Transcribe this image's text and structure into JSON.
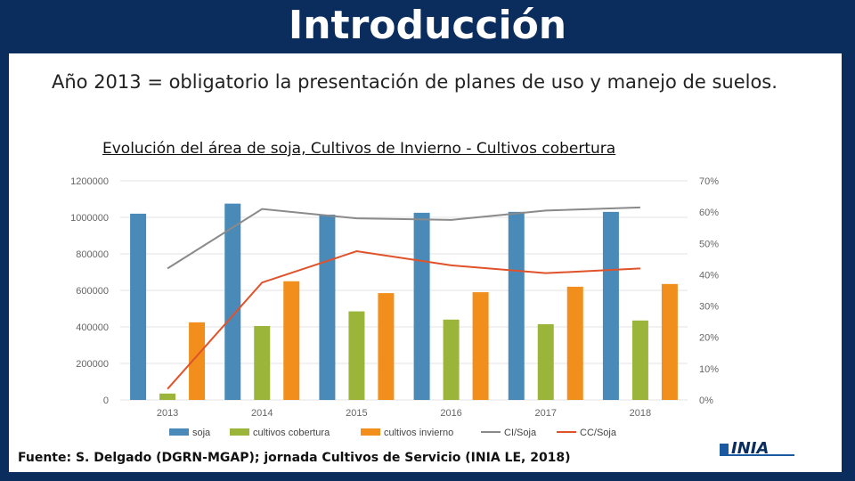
{
  "slide": {
    "title": "Introducción",
    "subtitle": "Año 2013 = obligatorio la presentación de planes de uso y manejo de suelos.",
    "source": "Fuente: S. Delgado (DGRN-MGAP); jornada Cultivos de Servicio (INIA LE, 2018)",
    "logo_text": "INIA"
  },
  "chart_data": {
    "type": "bar",
    "title": "Evolución del área de soja, Cultivos de Invierno - Cultivos cobertura",
    "categories": [
      "2013",
      "2014",
      "2015",
      "2016",
      "2017",
      "2018"
    ],
    "series": [
      {
        "name": "soja",
        "kind": "bar",
        "axis": "left",
        "color": "#4a8ab8",
        "values": [
          1020000,
          1075000,
          1015000,
          1025000,
          1030000,
          1030000
        ]
      },
      {
        "name": "cultivos cobertura",
        "kind": "bar",
        "axis": "left",
        "color": "#9ab53a",
        "values": [
          35000,
          405000,
          485000,
          440000,
          415000,
          435000
        ]
      },
      {
        "name": "cultivos invierno",
        "kind": "bar",
        "axis": "left",
        "color": "#f28e1c",
        "values": [
          425000,
          650000,
          585000,
          590000,
          620000,
          635000
        ]
      },
      {
        "name": "CI/Soja",
        "kind": "line",
        "axis": "right",
        "color": "#8a8a8a",
        "values": [
          0.42,
          0.61,
          0.58,
          0.575,
          0.605,
          0.615
        ]
      },
      {
        "name": "CC/Soja",
        "kind": "line",
        "axis": "right",
        "color": "#e0522a",
        "values": [
          0.035,
          0.375,
          0.475,
          0.43,
          0.405,
          0.42
        ]
      }
    ],
    "y_left": {
      "min": 0,
      "max": 1200000,
      "ticks": [
        "0",
        "200000",
        "400000",
        "600000",
        "800000",
        "1000000",
        "1200000"
      ]
    },
    "y_right": {
      "min": 0,
      "max": 0.7,
      "ticks": [
        "0%",
        "10%",
        "20%",
        "30%",
        "40%",
        "50%",
        "60%",
        "70%"
      ]
    },
    "grid": true,
    "legend_position": "bottom"
  }
}
